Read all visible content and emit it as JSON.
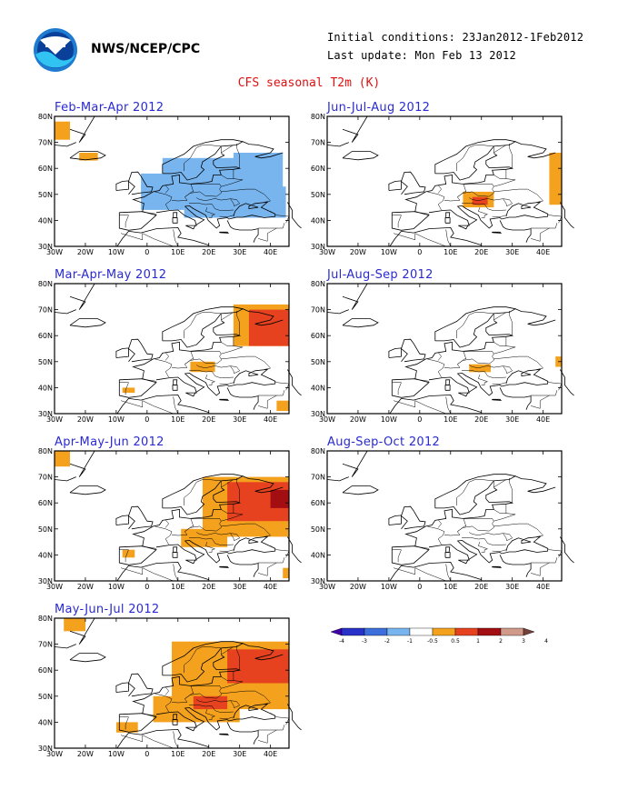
{
  "header": {
    "agency": "NWS/NCEP/CPC",
    "initial_conditions": "Initial conditions: 23Jan2012-1Feb2012",
    "last_update": "Last update: Mon Feb 13 2012",
    "title": "CFS seasonal T2m (K)"
  },
  "axes": {
    "lat_labels": [
      "80N",
      "70N",
      "60N",
      "50N",
      "40N",
      "30N"
    ],
    "lon_labels": [
      "30W",
      "20W",
      "10W",
      "0",
      "10E",
      "20E",
      "30E",
      "40E"
    ]
  },
  "panels": [
    {
      "id": "fma",
      "title": "Feb-Mar-Apr 2012",
      "anomaly": [
        {
          "lon": [
            -30,
            -25
          ],
          "lat": [
            71,
            78
          ],
          "level": "+0.5..1",
          "color": "#f4a21d"
        },
        {
          "lon": [
            -22,
            -16
          ],
          "lat": [
            63,
            66
          ],
          "level": "+0.5..1",
          "color": "#f4a21d"
        },
        {
          "lon": [
            -2,
            12
          ],
          "lat": [
            44,
            58
          ],
          "level": "-1..-0.5",
          "color": "#78b5ef"
        },
        {
          "lon": [
            5,
            30
          ],
          "lat": [
            50,
            64
          ],
          "level": "-1..-0.5",
          "color": "#78b5ef"
        },
        {
          "lon": [
            12,
            45
          ],
          "lat": [
            41,
            53
          ],
          "level": "-1..-0.5",
          "color": "#78b5ef"
        },
        {
          "lon": [
            28,
            44
          ],
          "lat": [
            52,
            66
          ],
          "level": "-1..-0.5",
          "color": "#78b5ef"
        }
      ]
    },
    {
      "id": "jja",
      "title": "Jun-Jul-Aug 2012",
      "anomaly": [
        {
          "lon": [
            42,
            46
          ],
          "lat": [
            46,
            66
          ],
          "level": "+0.5..1",
          "color": "#f4a21d"
        },
        {
          "lon": [
            14,
            24
          ],
          "lat": [
            45,
            51
          ],
          "level": "+0.5..1",
          "color": "#f4a21d"
        },
        {
          "lon": [
            17,
            22
          ],
          "lat": [
            46,
            49
          ],
          "level": "+1..2",
          "color": "#e6421f"
        }
      ]
    },
    {
      "id": "mam",
      "title": "Mar-Apr-May 2012",
      "anomaly": [
        {
          "lon": [
            28,
            46
          ],
          "lat": [
            56,
            72
          ],
          "level": "+0.5..1",
          "color": "#f4a21d"
        },
        {
          "lon": [
            33,
            46
          ],
          "lat": [
            56,
            70
          ],
          "level": "+1..2",
          "color": "#e6421f"
        },
        {
          "lon": [
            14,
            22
          ],
          "lat": [
            46,
            50
          ],
          "level": "+0.5..1",
          "color": "#f4a21d"
        },
        {
          "lon": [
            -8,
            -4
          ],
          "lat": [
            38,
            40
          ],
          "level": "+0.5..1",
          "color": "#f4a21d"
        },
        {
          "lon": [
            42,
            46
          ],
          "lat": [
            31,
            35
          ],
          "level": "+0.5..1",
          "color": "#f4a21d"
        }
      ]
    },
    {
      "id": "jas",
      "title": "Jul-Aug-Sep 2012",
      "anomaly": [
        {
          "lon": [
            16,
            23
          ],
          "lat": [
            46,
            49
          ],
          "level": "+0.5..1",
          "color": "#f4a21d"
        },
        {
          "lon": [
            44,
            46
          ],
          "lat": [
            48,
            52
          ],
          "level": "+0.5..1",
          "color": "#f4a21d"
        }
      ]
    },
    {
      "id": "amj",
      "title": "Apr-May-Jun 2012",
      "anomaly": [
        {
          "lon": [
            -30,
            -25
          ],
          "lat": [
            74,
            80
          ],
          "level": "+0.5..1",
          "color": "#f4a21d"
        },
        {
          "lon": [
            18,
            46
          ],
          "lat": [
            47,
            70
          ],
          "level": "+0.5..1",
          "color": "#f4a21d"
        },
        {
          "lon": [
            11,
            26
          ],
          "lat": [
            43,
            50
          ],
          "level": "+0.5..1",
          "color": "#f4a21d"
        },
        {
          "lon": [
            26,
            46
          ],
          "lat": [
            53,
            68
          ],
          "level": "+1..2",
          "color": "#e6421f"
        },
        {
          "lon": [
            40,
            46
          ],
          "lat": [
            58,
            65
          ],
          "level": "+2..3",
          "color": "#a30e12"
        },
        {
          "lon": [
            -8,
            -4
          ],
          "lat": [
            39,
            42
          ],
          "level": "+0.5..1",
          "color": "#f4a21d"
        },
        {
          "lon": [
            44,
            46
          ],
          "lat": [
            31,
            35
          ],
          "level": "+0.5..1",
          "color": "#f4a21d"
        }
      ]
    },
    {
      "id": "aso",
      "title": "Aug-Sep-Oct 2012",
      "anomaly": []
    },
    {
      "id": "mjj",
      "title": "May-Jun-Jul 2012",
      "anomaly": [
        {
          "lon": [
            -27,
            -20
          ],
          "lat": [
            75,
            80
          ],
          "level": "+0.5..1",
          "color": "#f4a21d"
        },
        {
          "lon": [
            8,
            46
          ],
          "lat": [
            45,
            71
          ],
          "level": "+0.5..1",
          "color": "#f4a21d"
        },
        {
          "lon": [
            2,
            30
          ],
          "lat": [
            40,
            50
          ],
          "level": "+0.5..1",
          "color": "#f4a21d"
        },
        {
          "lon": [
            26,
            46
          ],
          "lat": [
            55,
            68
          ],
          "level": "+1..2",
          "color": "#e6421f"
        },
        {
          "lon": [
            15,
            26
          ],
          "lat": [
            45,
            50
          ],
          "level": "+1..2",
          "color": "#e6421f"
        },
        {
          "lon": [
            -10,
            -3
          ],
          "lat": [
            36,
            40
          ],
          "level": "+0.5..1",
          "color": "#f4a21d"
        }
      ]
    }
  ],
  "colorbar": {
    "colors": [
      "#3f00b0",
      "#2832c8",
      "#3c6fdc",
      "#78b5ef",
      "#ffffff",
      "#f4a21d",
      "#e6421f",
      "#a30e12",
      "#d09a8a",
      "#74413a"
    ],
    "labels": [
      "-4",
      "-3",
      "-2",
      "-1",
      "-0.5",
      "0.5",
      "1",
      "2",
      "3",
      "4"
    ]
  }
}
